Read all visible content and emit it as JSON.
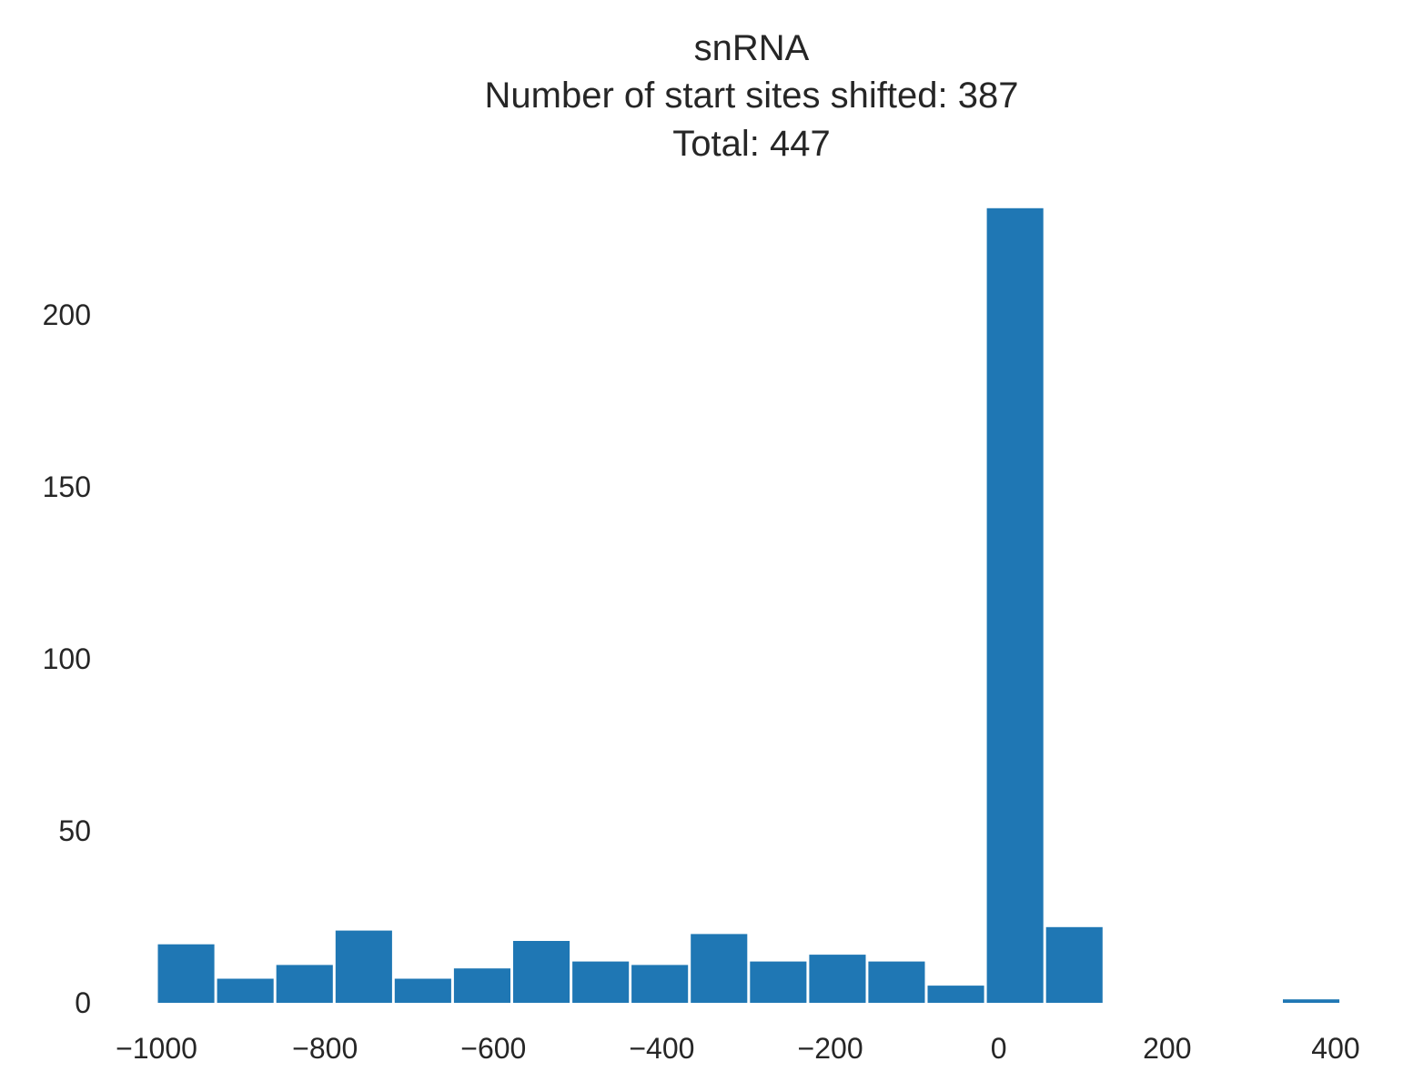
{
  "chart_data": {
    "type": "bar",
    "title_lines": [
      "snRNA",
      "Number of start sites shifted: 387",
      "Total: 447"
    ],
    "xlabel": "",
    "ylabel": "",
    "xlim": [
      -1040,
      440
    ],
    "ylim": [
      0,
      232
    ],
    "grid": false,
    "colors": {
      "bar": "#1f77b4",
      "text": "#262626"
    },
    "x_ticks": [
      {
        "value": -1000,
        "label": "−1000"
      },
      {
        "value": -800,
        "label": "−800"
      },
      {
        "value": -600,
        "label": "−600"
      },
      {
        "value": -400,
        "label": "−400"
      },
      {
        "value": -200,
        "label": "−200"
      },
      {
        "value": 0,
        "label": "0"
      },
      {
        "value": 200,
        "label": "200"
      },
      {
        "value": 400,
        "label": "400"
      }
    ],
    "y_ticks": [
      {
        "value": 0,
        "label": "0"
      },
      {
        "value": 50,
        "label": "50"
      },
      {
        "value": 100,
        "label": "100"
      },
      {
        "value": 150,
        "label": "150"
      },
      {
        "value": 200,
        "label": "200"
      }
    ],
    "bins": [
      {
        "start": -1000,
        "end": -929.7,
        "count": 17
      },
      {
        "start": -929.7,
        "end": -859.4,
        "count": 7
      },
      {
        "start": -859.4,
        "end": -789.1,
        "count": 11
      },
      {
        "start": -789.1,
        "end": -718.8,
        "count": 21
      },
      {
        "start": -718.8,
        "end": -648.5,
        "count": 7
      },
      {
        "start": -648.5,
        "end": -578.2,
        "count": 10
      },
      {
        "start": -578.2,
        "end": -507.9,
        "count": 18
      },
      {
        "start": -507.9,
        "end": -437.6,
        "count": 12
      },
      {
        "start": -437.6,
        "end": -367.3,
        "count": 11
      },
      {
        "start": -367.3,
        "end": -297.0,
        "count": 20
      },
      {
        "start": -297.0,
        "end": -226.7,
        "count": 12
      },
      {
        "start": -226.7,
        "end": -156.4,
        "count": 14
      },
      {
        "start": -156.4,
        "end": -86.1,
        "count": 12
      },
      {
        "start": -86.1,
        "end": -15.8,
        "count": 5
      },
      {
        "start": -15.8,
        "end": 54.5,
        "count": 231
      },
      {
        "start": 54.5,
        "end": 124.8,
        "count": 22
      },
      {
        "start": 124.8,
        "end": 195.1,
        "count": 0
      },
      {
        "start": 195.1,
        "end": 265.4,
        "count": 0
      },
      {
        "start": 265.4,
        "end": 335.7,
        "count": 0
      },
      {
        "start": 335.7,
        "end": 406.0,
        "count": 1
      }
    ]
  }
}
